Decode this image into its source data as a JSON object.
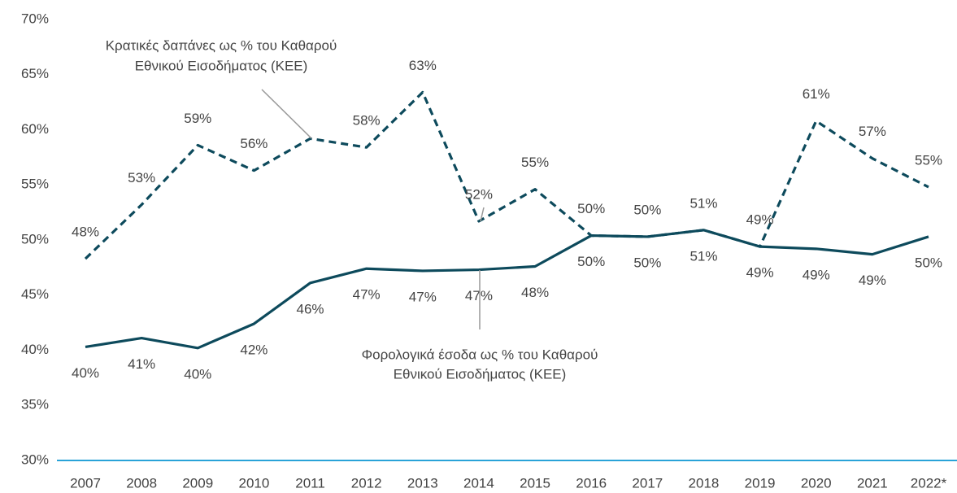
{
  "chart_data": {
    "type": "line",
    "categories": [
      "2007",
      "2008",
      "2009",
      "2010",
      "2011",
      "2012",
      "2013",
      "2014",
      "2015",
      "2016",
      "2017",
      "2018",
      "2019",
      "2020",
      "2021",
      "2022*"
    ],
    "series": [
      {
        "name_lines": [
          "Κρατικές δαπάνες ως % του Καθαρού",
          "Εθνικού Εισοδήματος (ΚΕΕ)"
        ],
        "color": "#0d4a5c",
        "dashed": true,
        "values": [
          48.3,
          53.2,
          58.6,
          56.3,
          59.2,
          58.4,
          63.4,
          51.7,
          54.6,
          50.4,
          50.3,
          50.9,
          49.4,
          60.8,
          57.4,
          54.8
        ],
        "value_labels": [
          "48%",
          "53%",
          "59%",
          "56%",
          null,
          "58%",
          "63%",
          "52%",
          "55%",
          "50%",
          "50%",
          "51%",
          "49%",
          "61%",
          "57%",
          "55%"
        ]
      },
      {
        "name_lines": [
          "Φορολογικά έσοδα ως % του Καθαρού",
          "Εθνικού Εισοδήματος (ΚΕΕ)"
        ],
        "color": "#0d4a5c",
        "dashed": false,
        "values": [
          40.3,
          41.1,
          40.2,
          42.4,
          46.1,
          47.4,
          47.2,
          47.3,
          47.6,
          50.4,
          50.3,
          50.9,
          49.4,
          49.2,
          48.7,
          50.3
        ],
        "value_labels": [
          "40%",
          "41%",
          "40%",
          "42%",
          "46%",
          "47%",
          "47%",
          "47%",
          "48%",
          "50%",
          "50%",
          "51%",
          "49%",
          "49%",
          "49%",
          "50%"
        ]
      }
    ],
    "ylim": [
      30,
      70
    ],
    "yticks": [
      {
        "value": 30,
        "label": "30%"
      },
      {
        "value": 35,
        "label": "35%"
      },
      {
        "value": 40,
        "label": "40%"
      },
      {
        "value": 45,
        "label": "45%"
      },
      {
        "value": 50,
        "label": "50%"
      },
      {
        "value": 55,
        "label": "55%"
      },
      {
        "value": 60,
        "label": "60%"
      },
      {
        "value": 65,
        "label": "65%"
      },
      {
        "value": 70,
        "label": "70%"
      }
    ],
    "grid": false,
    "axis_color": "#29a3d8"
  }
}
